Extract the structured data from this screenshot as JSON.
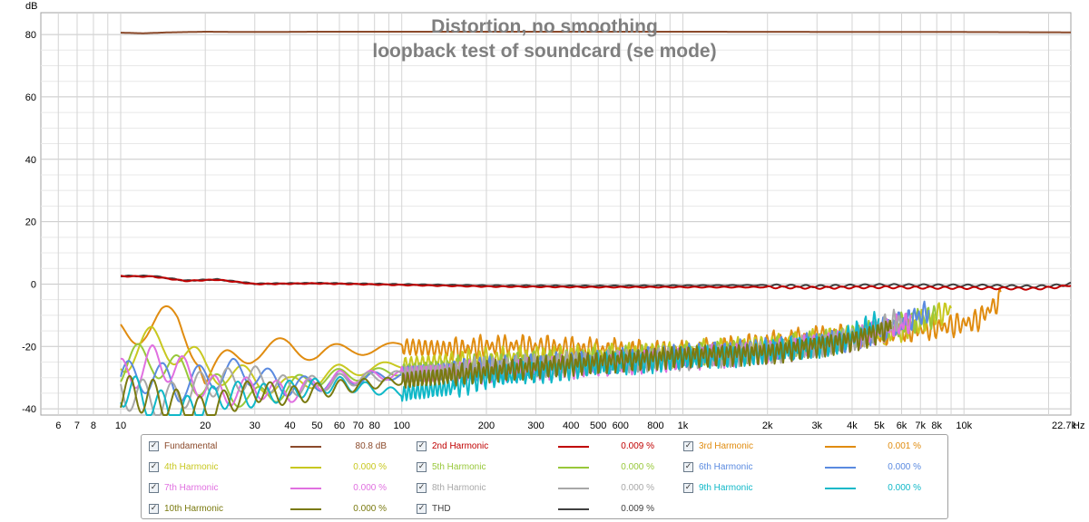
{
  "chart_data": {
    "type": "line",
    "title": "Distortion, no smoothing",
    "subtitle": "loopback test of soundcard (se mode)",
    "ylabel": "dB",
    "xunit": "Hz",
    "xscale": "log",
    "xlim": [
      5.2,
      24000
    ],
    "ylim": [
      -42,
      87
    ],
    "grid": true,
    "yticks": [
      80,
      60,
      40,
      20,
      0,
      -20,
      -40
    ],
    "xticks": [
      {
        "v": 6,
        "t": "6"
      },
      {
        "v": 7,
        "t": "7"
      },
      {
        "v": 8,
        "t": "8"
      },
      {
        "v": 10,
        "t": "10"
      },
      {
        "v": 20,
        "t": "20"
      },
      {
        "v": 30,
        "t": "30"
      },
      {
        "v": 40,
        "t": "40"
      },
      {
        "v": 50,
        "t": "50"
      },
      {
        "v": 60,
        "t": "60"
      },
      {
        "v": 70,
        "t": "70"
      },
      {
        "v": 80,
        "t": "80"
      },
      {
        "v": 100,
        "t": "100"
      },
      {
        "v": 200,
        "t": "200"
      },
      {
        "v": 300,
        "t": "300"
      },
      {
        "v": 400,
        "t": "400"
      },
      {
        "v": 500,
        "t": "500"
      },
      {
        "v": 600,
        "t": "600"
      },
      {
        "v": 800,
        "t": "800"
      },
      {
        "v": 1000,
        "t": "1k"
      },
      {
        "v": 2000,
        "t": "2k"
      },
      {
        "v": 3000,
        "t": "3k"
      },
      {
        "v": 4000,
        "t": "4k"
      },
      {
        "v": 5000,
        "t": "5k"
      },
      {
        "v": 6000,
        "t": "6k"
      },
      {
        "v": 7000,
        "t": "7k"
      },
      {
        "v": 8000,
        "t": "8k"
      },
      {
        "v": 10000,
        "t": "10k"
      },
      {
        "v": 22700,
        "t": "22.7k"
      }
    ],
    "x_end_label": "Hz",
    "series": [
      {
        "name": "Fundamental",
        "color": "#8b4a2b",
        "value": "80.8 dB",
        "fmax": 24000,
        "points": [
          [
            10,
            80.6
          ],
          [
            12,
            80.4
          ],
          [
            15,
            80.7
          ],
          [
            20,
            80.9
          ],
          [
            30,
            80.8
          ],
          [
            50,
            80.9
          ],
          [
            100,
            80.9
          ],
          [
            1000,
            80.9
          ],
          [
            10000,
            80.8
          ],
          [
            24000,
            80.7
          ]
        ]
      },
      {
        "name": "2nd Harmonic",
        "color": "#c00000",
        "value": "0.009 %",
        "fmax": 24000,
        "points": [
          [
            10,
            2.5
          ],
          [
            13,
            2.4
          ],
          [
            17,
            1.0
          ],
          [
            22,
            1.4
          ],
          [
            30,
            0.0
          ],
          [
            50,
            0.2
          ],
          [
            100,
            -0.3
          ],
          [
            200,
            -0.8
          ],
          [
            500,
            -1.0
          ],
          [
            1000,
            -1.0
          ],
          [
            2000,
            -1.0
          ],
          [
            3000,
            -1.2
          ],
          [
            5000,
            -1.0
          ],
          [
            8000,
            -1.2
          ],
          [
            12000,
            -1.3
          ],
          [
            18000,
            -1.5
          ],
          [
            22700,
            -0.8
          ],
          [
            24000,
            -0.2
          ]
        ]
      },
      {
        "name": "3rd Harmonic",
        "color": "#e08c10",
        "value": "0.001 %",
        "fmax": 13500,
        "points": [
          [
            10,
            -16
          ],
          [
            12,
            -13
          ],
          [
            14,
            -12
          ],
          [
            16,
            -13
          ],
          [
            19,
            -22
          ],
          [
            20,
            -30
          ],
          [
            24,
            -25
          ],
          [
            30,
            -21
          ],
          [
            40,
            -20.5
          ],
          [
            50,
            -22
          ],
          [
            70,
            -21
          ],
          [
            100,
            -20
          ],
          [
            150,
            -21
          ],
          [
            200,
            -20
          ],
          [
            300,
            -20
          ],
          [
            500,
            -21
          ],
          [
            1000,
            -22
          ],
          [
            2000,
            -19
          ],
          [
            3000,
            -17
          ],
          [
            5000,
            -16
          ],
          [
            8000,
            -14
          ],
          [
            11000,
            -12
          ],
          [
            13500,
            -5
          ]
        ]
      },
      {
        "name": "4th Harmonic",
        "color": "#c8c820",
        "value": "0.000 %",
        "fmax": 9000,
        "points": [
          [
            10,
            -23
          ],
          [
            13,
            -19
          ],
          [
            16,
            -21
          ],
          [
            20,
            -27
          ],
          [
            25,
            -29
          ],
          [
            30,
            -31
          ],
          [
            40,
            -33
          ],
          [
            60,
            -28
          ],
          [
            100,
            -26
          ],
          [
            200,
            -24
          ],
          [
            500,
            -23
          ],
          [
            1000,
            -22
          ],
          [
            2000,
            -20
          ],
          [
            4000,
            -17
          ],
          [
            6000,
            -15
          ],
          [
            9000,
            -8
          ]
        ]
      },
      {
        "name": "5th Harmonic",
        "color": "#98c83a",
        "value": "0.000 %",
        "fmax": 8000,
        "points": [
          [
            10,
            -26
          ],
          [
            13,
            -24
          ],
          [
            16,
            -28
          ],
          [
            20,
            -32
          ],
          [
            30,
            -37
          ],
          [
            50,
            -30
          ],
          [
            100,
            -28
          ],
          [
            200,
            -26
          ],
          [
            500,
            -24
          ],
          [
            1000,
            -23
          ],
          [
            2000,
            -21
          ],
          [
            4000,
            -17
          ],
          [
            8000,
            -10
          ]
        ]
      },
      {
        "name": "6th Harmonic",
        "color": "#5a8ae0",
        "value": "0.000 %",
        "fmax": 7500,
        "points": [
          [
            10,
            -31
          ],
          [
            13,
            -29
          ],
          [
            16,
            -33
          ],
          [
            20,
            -30
          ],
          [
            25,
            -28
          ],
          [
            30,
            -29
          ],
          [
            40,
            -33
          ],
          [
            60,
            -31
          ],
          [
            100,
            -29
          ],
          [
            200,
            -27
          ],
          [
            500,
            -25
          ],
          [
            1000,
            -23
          ],
          [
            2000,
            -21
          ],
          [
            4000,
            -18
          ],
          [
            7500,
            -9
          ]
        ]
      },
      {
        "name": "7th Harmonic",
        "color": "#e070e0",
        "value": "0.000 %",
        "fmax": 6500,
        "points": [
          [
            10,
            -30
          ],
          [
            13,
            -25
          ],
          [
            16,
            -27
          ],
          [
            20,
            -33
          ],
          [
            25,
            -35
          ],
          [
            30,
            -33
          ],
          [
            40,
            -35
          ],
          [
            60,
            -30
          ],
          [
            100,
            -29
          ],
          [
            200,
            -28
          ],
          [
            500,
            -26
          ],
          [
            1000,
            -24
          ],
          [
            2000,
            -22
          ],
          [
            4000,
            -18
          ],
          [
            6500,
            -12
          ]
        ]
      },
      {
        "name": "8th Harmonic",
        "color": "#a8a8a8",
        "value": "0.000 %",
        "fmax": 6000,
        "points": [
          [
            10,
            -34
          ],
          [
            14,
            -38
          ],
          [
            20,
            -32
          ],
          [
            30,
            -30
          ],
          [
            40,
            -33
          ],
          [
            60,
            -31
          ],
          [
            100,
            -29
          ],
          [
            200,
            -27
          ],
          [
            500,
            -25
          ],
          [
            1000,
            -24
          ],
          [
            2000,
            -22
          ],
          [
            4000,
            -18
          ],
          [
            6000,
            -11
          ]
        ]
      },
      {
        "name": "9th Harmonic",
        "color": "#10b8c8",
        "value": "0.000 %",
        "fmax": 5000,
        "points": [
          [
            10,
            -33
          ],
          [
            13,
            -38
          ],
          [
            16,
            -42
          ],
          [
            20,
            -38
          ],
          [
            25,
            -35
          ],
          [
            30,
            -36
          ],
          [
            40,
            -34
          ],
          [
            60,
            -32
          ],
          [
            100,
            -35
          ],
          [
            150,
            -33
          ],
          [
            200,
            -30
          ],
          [
            500,
            -26
          ],
          [
            1000,
            -24
          ],
          [
            2000,
            -22
          ],
          [
            3500,
            -19
          ],
          [
            5000,
            -12
          ]
        ]
      },
      {
        "name": "10th Harmonic",
        "color": "#7a7a10",
        "value": "0.000 %",
        "fmax": 5500,
        "points": [
          [
            10,
            -35
          ],
          [
            13,
            -36
          ],
          [
            16,
            -39
          ],
          [
            20,
            -41
          ],
          [
            25,
            -37
          ],
          [
            30,
            -34
          ],
          [
            40,
            -36
          ],
          [
            60,
            -33
          ],
          [
            100,
            -31
          ],
          [
            200,
            -28
          ],
          [
            500,
            -25
          ],
          [
            1000,
            -23
          ],
          [
            2000,
            -22
          ],
          [
            4000,
            -18
          ],
          [
            5500,
            -14
          ]
        ]
      },
      {
        "name": "THD",
        "color": "#404040",
        "value": "0.009 %",
        "fmax": 24000,
        "points": [
          [
            10,
            2.6
          ],
          [
            13,
            2.6
          ],
          [
            17,
            1.1
          ],
          [
            22,
            1.5
          ],
          [
            30,
            0.1
          ],
          [
            50,
            0.3
          ],
          [
            100,
            -0.1
          ],
          [
            200,
            -0.5
          ],
          [
            500,
            -0.6
          ],
          [
            1000,
            -0.5
          ],
          [
            2000,
            -0.4
          ],
          [
            3000,
            -0.7
          ],
          [
            5000,
            -0.3
          ],
          [
            8000,
            -0.4
          ],
          [
            12000,
            -0.5
          ],
          [
            18000,
            -0.8
          ],
          [
            22700,
            -0.3
          ],
          [
            24000,
            0.1
          ]
        ]
      }
    ]
  },
  "legend": [
    {
      "label": "Fundamental",
      "value": "80.8 dB",
      "color": "#8b4a2b",
      "checked": "✓"
    },
    {
      "label": "2nd Harmonic",
      "value": "0.009 %",
      "color": "#c00000",
      "checked": "✓"
    },
    {
      "label": "3rd Harmonic",
      "value": "0.001 %",
      "color": "#e08c10",
      "checked": "✓"
    },
    {
      "label": "4th Harmonic",
      "value": "0.000 %",
      "color": "#c8c820",
      "checked": "✓"
    },
    {
      "label": "5th Harmonic",
      "value": "0.000 %",
      "color": "#98c83a",
      "checked": "✓"
    },
    {
      "label": "6th Harmonic",
      "value": "0.000 %",
      "color": "#5a8ae0",
      "checked": "✓"
    },
    {
      "label": "7th Harmonic",
      "value": "0.000 %",
      "color": "#e070e0",
      "checked": "✓"
    },
    {
      "label": "8th Harmonic",
      "value": "0.000 %",
      "color": "#a8a8a8",
      "checked": "✓"
    },
    {
      "label": "9th Harmonic",
      "value": "0.000 %",
      "color": "#10b8c8",
      "checked": "✓"
    },
    {
      "label": "10th Harmonic",
      "value": "0.000 %",
      "color": "#7a7a10",
      "checked": "✓"
    },
    {
      "label": "THD",
      "value": "0.009 %",
      "color": "#404040",
      "checked": "✓"
    }
  ]
}
